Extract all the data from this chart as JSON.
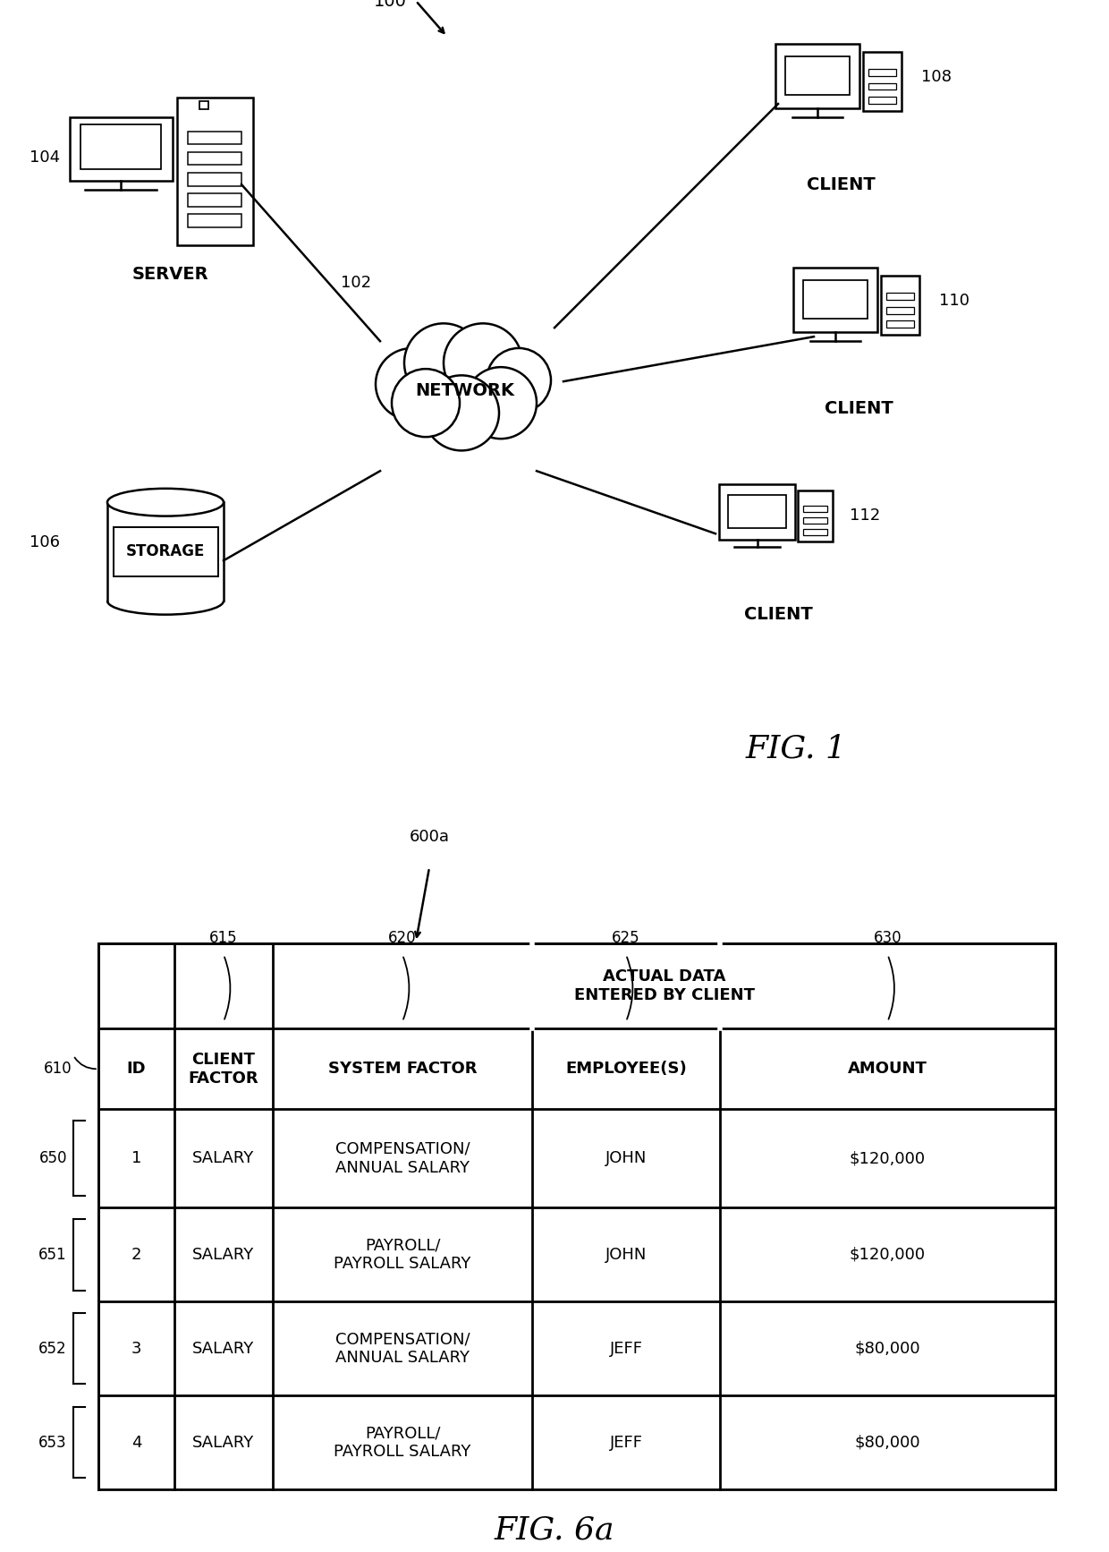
{
  "fig1": {
    "title": "FIG. 1",
    "label_100": "100",
    "label_102": "102",
    "label_104": "104",
    "label_106": "106",
    "label_108": "108",
    "label_110": "110",
    "label_112": "112",
    "network_label": "NETWORK",
    "server_label": "SERVER",
    "storage_label": "STORAGE",
    "client_label": "CLIENT"
  },
  "fig6a": {
    "title": "FIG. 6a",
    "label_600a": "600a",
    "label_610": "610",
    "label_615": "615",
    "label_620": "620",
    "label_625": "625",
    "label_630": "630",
    "label_650": "650",
    "label_651": "651",
    "label_652": "652",
    "label_653": "653",
    "header_top": "ACTUAL DATA\nENTERED BY CLIENT",
    "col_headers": [
      "ID",
      "CLIENT\nFACTOR",
      "SYSTEM FACTOR",
      "EMPLOYEE(S)",
      "AMOUNT"
    ],
    "rows": [
      [
        "1",
        "SALARY",
        "COMPENSATION/\nANNUAL SALARY",
        "JOHN",
        "$120,000"
      ],
      [
        "2",
        "SALARY",
        "PAYROLL/\nPAYROLL SALARY",
        "JOHN",
        "$120,000"
      ],
      [
        "3",
        "SALARY",
        "COMPENSATION/\nANNUAL SALARY",
        "JEFF",
        "$80,000"
      ],
      [
        "4",
        "SALARY",
        "PAYROLL/\nPAYROLL SALARY",
        "JEFF",
        "$80,000"
      ]
    ]
  },
  "bg_color": "#ffffff",
  "line_color": "#000000"
}
